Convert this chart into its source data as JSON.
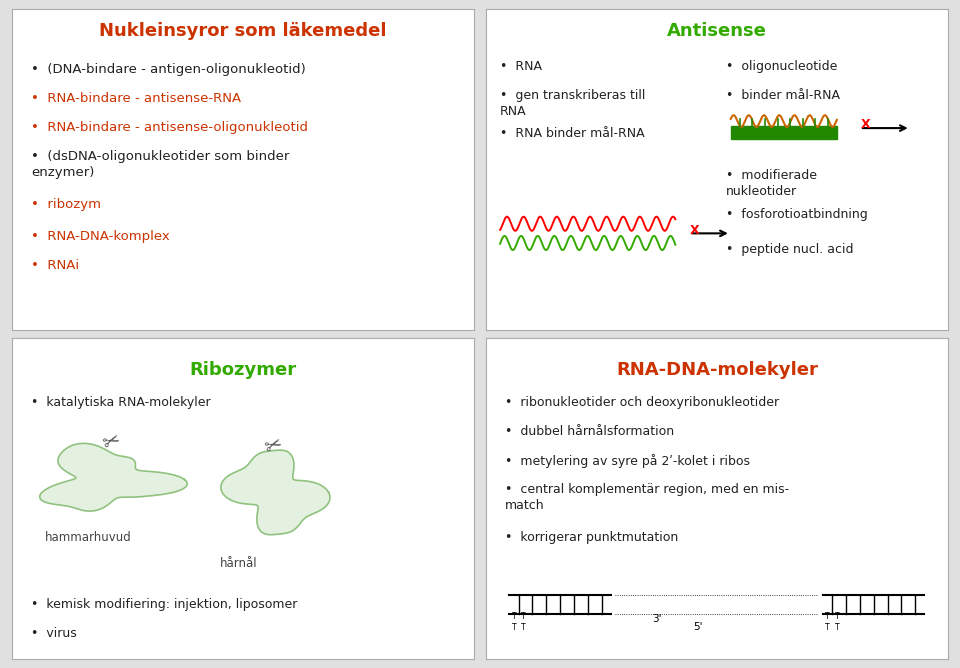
{
  "bg_color": "#e0e0e0",
  "panel_bg": "#ffffff",
  "panel_border": "#aaaaaa",
  "red_color": "#cc3300",
  "green_color": "#33aa00",
  "black_color": "#222222",
  "panel1": {
    "title": "Nukleinsyror som läkemedel",
    "title_color": "#cc3300",
    "items": [
      {
        "text": "(DNA-bindare - antigen-oligonukleotid)",
        "color": "#222222"
      },
      {
        "text": "RNA-bindare - antisense-RNA",
        "color": "#cc3300"
      },
      {
        "text": "RNA-bindare - antisense-oligonukleotid",
        "color": "#cc3300"
      },
      {
        "text": "(dsDNA-oligonukleotider som binder\nenzymer)",
        "color": "#222222"
      },
      {
        "text": "ribozym",
        "color": "#cc3300"
      },
      {
        "text": "RNA-DNA-komplex",
        "color": "#cc3300"
      },
      {
        "text": "RNAi",
        "color": "#cc3300"
      }
    ]
  },
  "panel2": {
    "title": "Antisense",
    "title_color": "#33aa00",
    "left_items": [
      {
        "text": "RNA",
        "color": "#222222"
      },
      {
        "text": "gen transkriberas till\nRNA",
        "color": "#222222"
      },
      {
        "text": "RNA binder mål-RNA",
        "color": "#222222"
      }
    ],
    "right_items": [
      {
        "text": "oligonucleotide",
        "color": "#222222"
      },
      {
        "text": "binder mål-RNA",
        "color": "#222222"
      }
    ],
    "right_items2": [
      {
        "text": "modifierade\nnukleotider",
        "color": "#222222"
      },
      {
        "text": "fosforotioatbindning",
        "color": "#222222"
      },
      {
        "text": "peptide nucl. acid",
        "color": "#222222"
      }
    ]
  },
  "panel3": {
    "title": "Ribozymer",
    "title_color": "#33aa00",
    "items": [
      {
        "text": "katalytiska RNA-molekyler",
        "color": "#222222"
      },
      {
        "text": "kemisk modifiering: injektion, liposomer",
        "color": "#222222"
      },
      {
        "text": "virus",
        "color": "#222222"
      }
    ],
    "label1": "hammarhuvud",
    "label2": "hårnål"
  },
  "panel4": {
    "title": "RNA-DNA-molekyler",
    "title_color": "#cc3300",
    "items": [
      {
        "text": "ribonukleotider och deoxyribonukleotider",
        "color": "#222222"
      },
      {
        "text": "dubbel hårnålsformation",
        "color": "#222222"
      },
      {
        "text": "metylering av syre på 2ʹ-kolet i ribos",
        "color": "#222222"
      },
      {
        "text": "central komplementär region, med en mis-\nmatch",
        "color": "#222222"
      },
      {
        "text": "korrigerar punktmutation",
        "color": "#222222"
      }
    ]
  }
}
